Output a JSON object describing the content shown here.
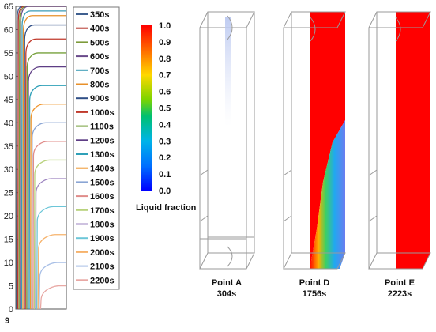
{
  "chart_data": [
    {
      "type": "line",
      "xlabel": "",
      "ylabel": "",
      "x_tick_labels": [
        "9"
      ],
      "ylim": [
        0,
        65
      ],
      "y_ticks": [
        0,
        5,
        10,
        15,
        20,
        25,
        30,
        35,
        40,
        45,
        50,
        55,
        60,
        65
      ],
      "grid": false,
      "legend_position": "right",
      "series": [
        {
          "name": "350s",
          "color": "#3f5f8f",
          "plateau": 65
        },
        {
          "name": "400s",
          "color": "#b5362e",
          "plateau": 65
        },
        {
          "name": "500s",
          "color": "#7d9b3a",
          "plateau": 65
        },
        {
          "name": "600s",
          "color": "#6a4a8a",
          "plateau": 65
        },
        {
          "name": "700s",
          "color": "#3a9bb5",
          "plateau": 64
        },
        {
          "name": "800s",
          "color": "#e8902a",
          "plateau": 63
        },
        {
          "name": "900s",
          "color": "#2f4e86",
          "plateau": 61
        },
        {
          "name": "1000s",
          "color": "#c0392b",
          "plateau": 58
        },
        {
          "name": "1100s",
          "color": "#76a03b",
          "plateau": 55
        },
        {
          "name": "1200s",
          "color": "#5e3d85",
          "plateau": 52
        },
        {
          "name": "1300s",
          "color": "#2fa0b8",
          "plateau": 48
        },
        {
          "name": "1400s",
          "color": "#f0962f",
          "plateau": 44
        },
        {
          "name": "1500s",
          "color": "#8aa5d4",
          "plateau": 40
        },
        {
          "name": "1600s",
          "color": "#e08c8a",
          "plateau": 36
        },
        {
          "name": "1700s",
          "color": "#b8d27c",
          "plateau": 32
        },
        {
          "name": "1800s",
          "color": "#9d84c0",
          "plateau": 28
        },
        {
          "name": "1900s",
          "color": "#6cc6d8",
          "plateau": 22
        },
        {
          "name": "2000s",
          "color": "#f6b26b",
          "plateau": 16
        },
        {
          "name": "2100s",
          "color": "#a8bfe6",
          "plateau": 10
        },
        {
          "name": "2200s",
          "color": "#e8a8a4",
          "plateau": 5
        }
      ]
    },
    {
      "type": "heatmap",
      "colorbar_label": "Liquid fraction",
      "colorbar_ticks": [
        "1.0",
        "0.9",
        "0.8",
        "0.7",
        "0.6",
        "0.5",
        "0.4",
        "0.3",
        "0.2",
        "0.1",
        "0.0"
      ],
      "panels": [
        {
          "name": "Point A",
          "time": "304s"
        },
        {
          "name": "Point D",
          "time": "1756s"
        },
        {
          "name": "Point E",
          "time": "2223s"
        }
      ]
    }
  ]
}
